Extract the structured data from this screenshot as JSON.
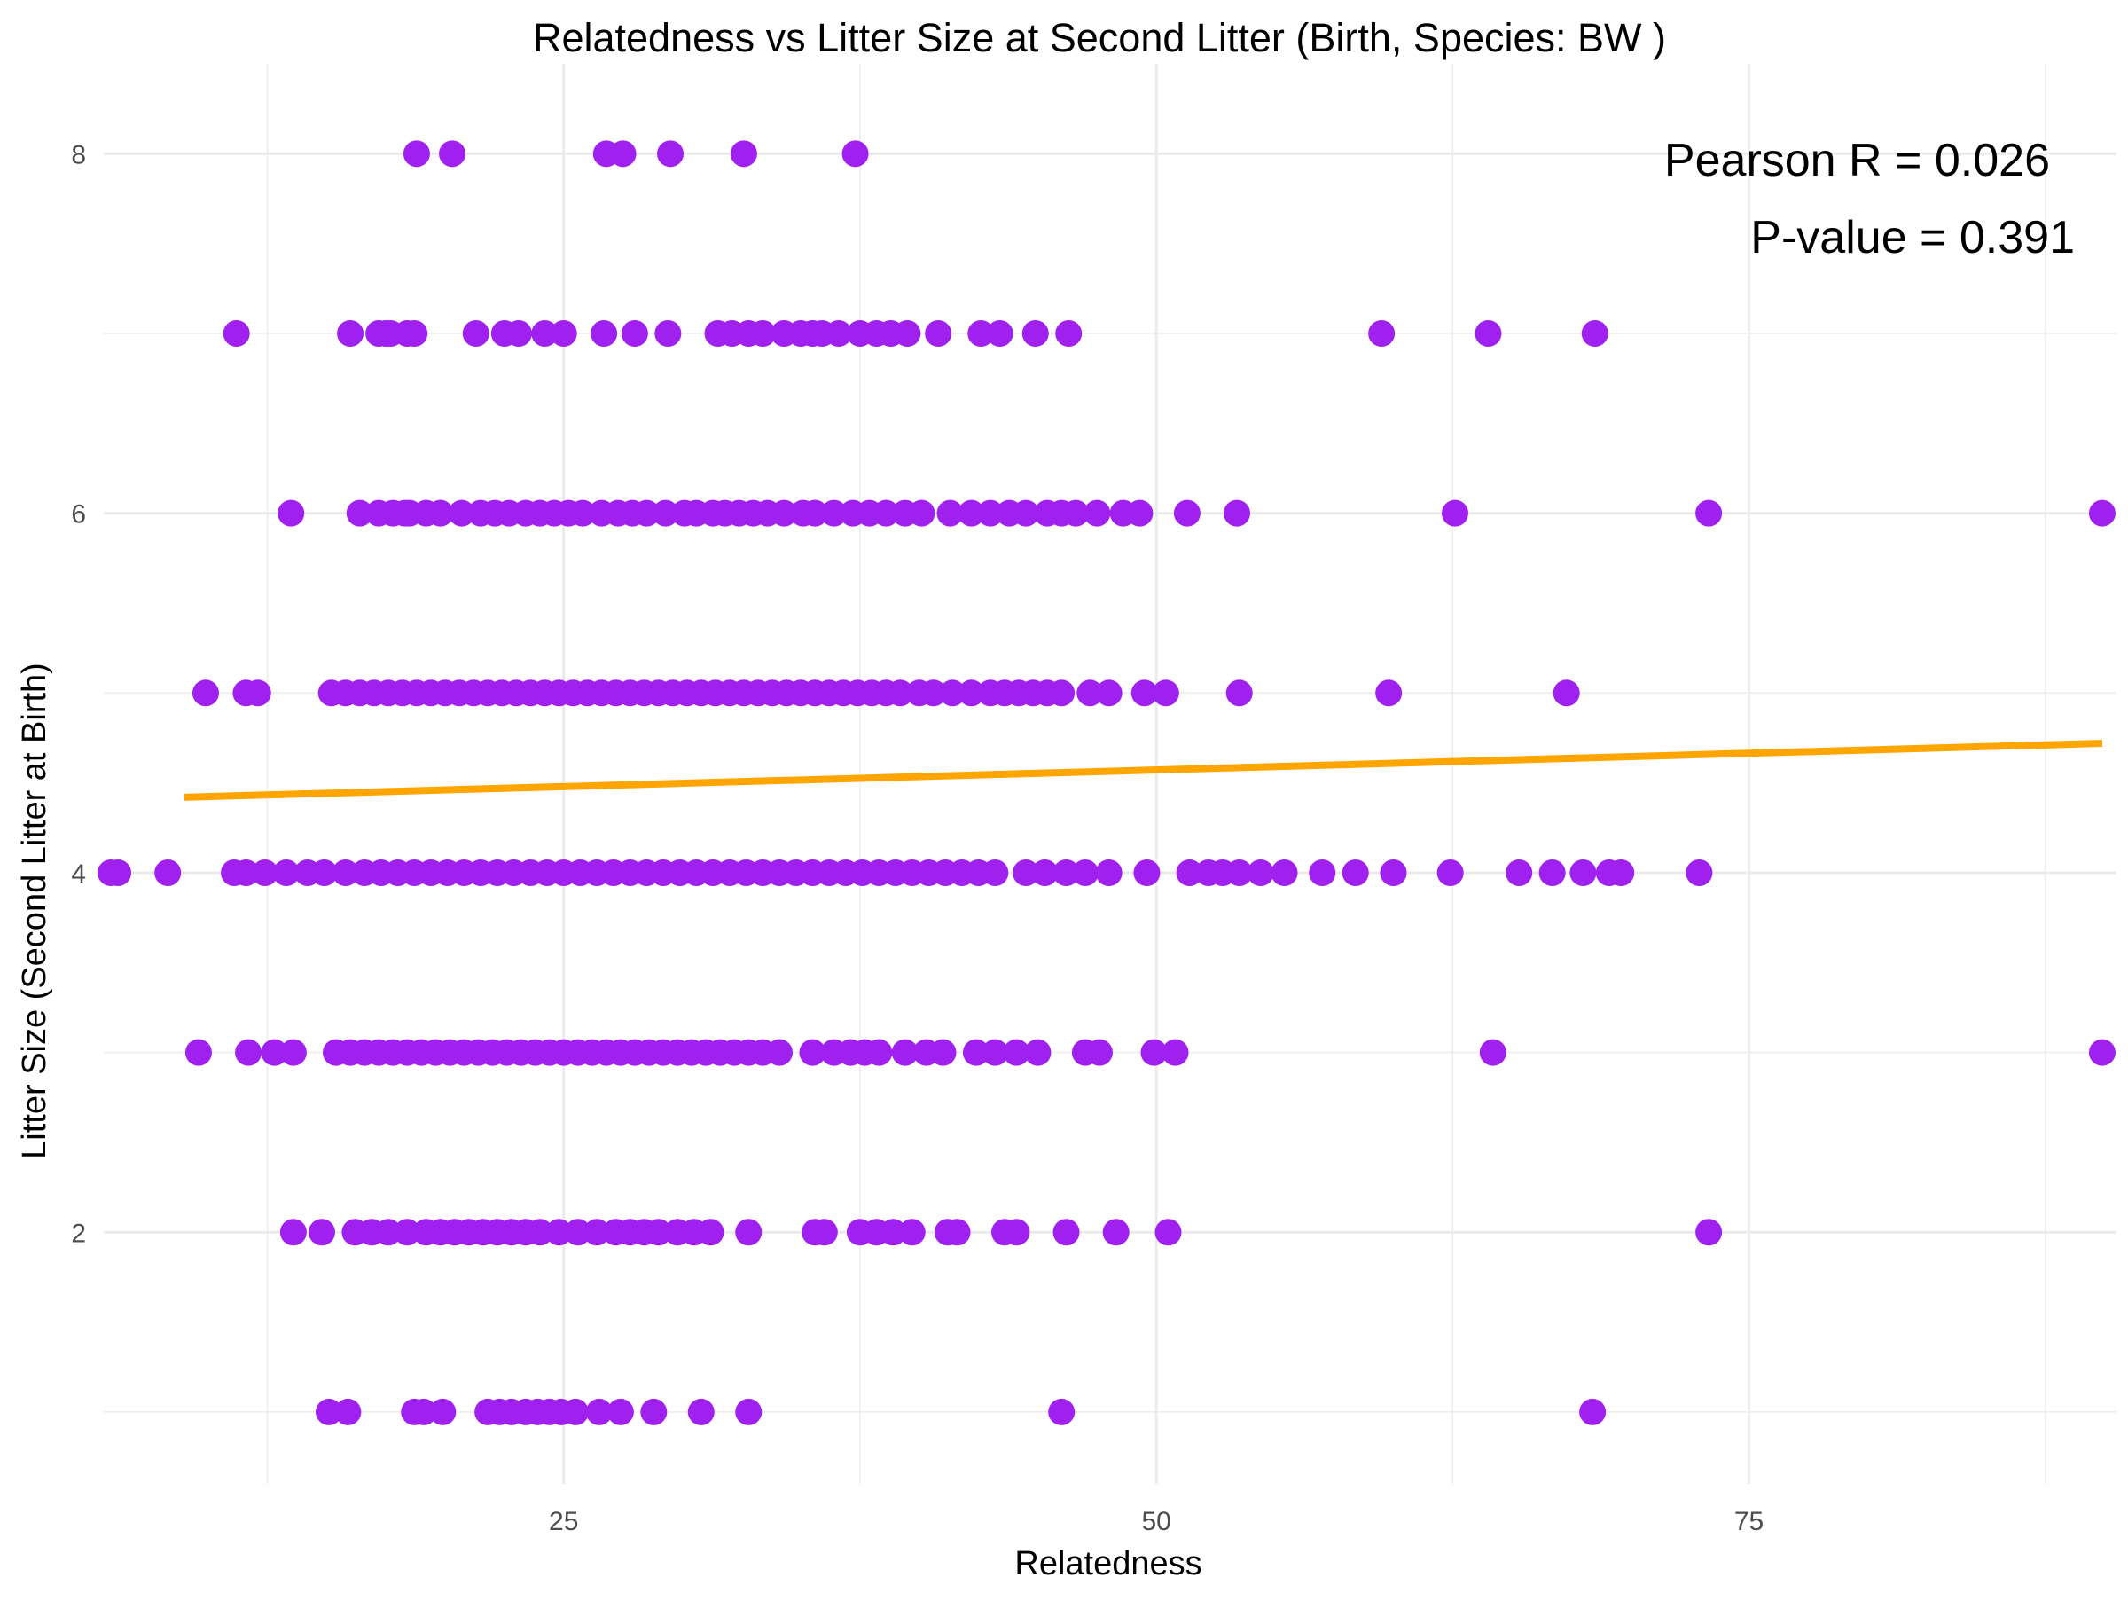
{
  "chart_data": {
    "type": "scatter",
    "title": "Relatedness vs Litter Size at Second Litter (Birth, Species: BW )",
    "xlabel": "Relatedness",
    "ylabel": "Litter Size (Second Litter at Birth)",
    "xlim": [
      5.6,
      90.5
    ],
    "ylim": [
      0.6,
      8.5
    ],
    "x_ticks": [
      25,
      50,
      75
    ],
    "x_tick_labels": [
      "25",
      "50",
      "75"
    ],
    "x_minor_ticks": [
      12.5,
      37.5,
      62.5,
      87.5
    ],
    "y_ticks": [
      2,
      4,
      6,
      8
    ],
    "y_tick_labels": [
      "2",
      "4",
      "6",
      "8"
    ],
    "y_minor_ticks": [
      1,
      3,
      5,
      7
    ],
    "grid": true,
    "annotations": [
      "Pearson R = 0.026",
      "P-value = 0.391"
    ],
    "colors": {
      "points": "#A020F0",
      "trend": "#FFA500",
      "grid": "#EBEBEB",
      "text": "#000000",
      "tick_text": "#4D4D4D"
    },
    "trend_line": {
      "x": [
        9.0,
        89.9
      ],
      "y": [
        4.42,
        4.72
      ]
    },
    "series": [
      {
        "values": [
          {
            "y": 8,
            "x": [
              18.8,
              20.3,
              26.8,
              27.5,
              29.5,
              32.6,
              37.3
            ]
          },
          {
            "y": 7,
            "x": [
              11.2,
              16.0,
              17.2,
              17.5,
              17.7,
              18.4,
              18.7,
              21.3,
              22.5,
              23.1,
              24.2,
              25.0,
              26.7,
              28.0,
              29.4,
              31.5,
              32.1,
              32.8,
              33.4,
              34.3,
              35.0,
              35.5,
              35.9,
              36.6,
              37.5,
              38.2,
              38.8,
              39.5,
              40.8,
              42.6,
              43.4,
              44.9,
              46.3,
              59.5,
              64.0,
              68.5
            ]
          },
          {
            "y": 6,
            "x": [
              13.5,
              16.4,
              17.2,
              17.8,
              18.3,
              18.5,
              19.2,
              19.8,
              20.7,
              21.5,
              22.1,
              22.7,
              23.4,
              24.0,
              24.6,
              25.2,
              25.8,
              26.6,
              27.3,
              27.9,
              28.5,
              29.3,
              30.1,
              30.6,
              31.3,
              31.8,
              32.4,
              33.0,
              33.6,
              34.3,
              35.1,
              35.6,
              36.4,
              37.2,
              37.9,
              38.6,
              39.4,
              40.1,
              41.3,
              42.2,
              43.0,
              43.8,
              44.5,
              45.4,
              46.0,
              46.6,
              47.5,
              48.6,
              49.3,
              51.3,
              53.4,
              62.6,
              73.3,
              89.9
            ]
          },
          {
            "y": 5,
            "x": [
              9.9,
              11.6,
              12.1,
              15.2,
              15.8,
              16.4,
              17.0,
              17.6,
              18.2,
              18.8,
              19.4,
              20.0,
              20.6,
              21.2,
              21.8,
              22.4,
              23.0,
              23.6,
              24.2,
              24.8,
              25.4,
              26.0,
              26.6,
              27.2,
              27.8,
              28.4,
              29.0,
              29.6,
              30.2,
              30.8,
              31.4,
              32.0,
              32.6,
              33.2,
              33.8,
              34.4,
              35.0,
              35.6,
              36.2,
              36.8,
              37.4,
              38.0,
              38.6,
              39.2,
              40.0,
              40.6,
              41.4,
              42.2,
              43.0,
              43.6,
              44.2,
              44.8,
              45.4,
              46.0,
              47.2,
              48.0,
              49.5,
              50.4,
              53.5,
              59.8,
              67.3
            ]
          },
          {
            "y": 4,
            "x": [
              5.9,
              6.2,
              8.3,
              11.1,
              11.6,
              12.4,
              13.3,
              14.2,
              14.9,
              15.8,
              16.6,
              17.3,
              18.0,
              18.7,
              19.4,
              20.1,
              20.8,
              21.5,
              22.2,
              22.9,
              23.6,
              24.3,
              25.0,
              25.7,
              26.4,
              27.1,
              27.8,
              28.5,
              29.2,
              29.9,
              30.6,
              31.3,
              32.0,
              32.7,
              33.4,
              34.1,
              34.8,
              35.5,
              36.2,
              36.9,
              37.6,
              38.3,
              39.0,
              39.7,
              40.4,
              41.1,
              41.8,
              42.5,
              43.2,
              44.5,
              45.3,
              46.2,
              47.0,
              48.0,
              49.6,
              51.4,
              52.2,
              52.8,
              53.5,
              54.4,
              55.4,
              57.0,
              58.4,
              60.0,
              62.4,
              65.3,
              66.7,
              68.0,
              69.1,
              69.6,
              72.9
            ]
          },
          {
            "y": 3,
            "x": [
              9.6,
              11.7,
              12.8,
              13.6,
              15.4,
              16.0,
              16.6,
              17.2,
              17.8,
              18.4,
              19.0,
              19.6,
              20.2,
              20.8,
              21.4,
              22.0,
              22.6,
              23.2,
              23.8,
              24.4,
              25.0,
              25.6,
              26.2,
              26.8,
              27.4,
              28.0,
              28.6,
              29.2,
              29.8,
              30.4,
              31.0,
              31.6,
              32.2,
              32.8,
              33.4,
              34.1,
              35.5,
              36.4,
              37.1,
              37.7,
              38.3,
              39.4,
              40.3,
              41.0,
              42.4,
              43.2,
              44.1,
              45.0,
              47.0,
              47.6,
              49.9,
              50.8,
              64.2,
              89.9
            ]
          },
          {
            "y": 2,
            "x": [
              13.6,
              14.8,
              16.2,
              16.9,
              17.6,
              18.4,
              19.2,
              19.8,
              20.4,
              21.0,
              21.6,
              22.2,
              22.8,
              23.4,
              24.0,
              24.8,
              25.6,
              26.4,
              27.2,
              27.8,
              28.4,
              29.0,
              29.8,
              30.5,
              31.2,
              32.8,
              35.6,
              36.0,
              37.5,
              38.2,
              38.9,
              39.7,
              41.2,
              41.6,
              43.6,
              44.1,
              46.2,
              48.3,
              50.5,
              73.3
            ]
          },
          {
            "y": 1,
            "x": [
              15.1,
              15.9,
              18.7,
              19.1,
              19.9,
              21.8,
              22.3,
              22.8,
              23.4,
              23.9,
              24.4,
              24.9,
              25.5,
              26.5,
              27.4,
              28.8,
              30.8,
              32.8,
              46.0,
              68.4
            ]
          }
        ]
      }
    ]
  }
}
